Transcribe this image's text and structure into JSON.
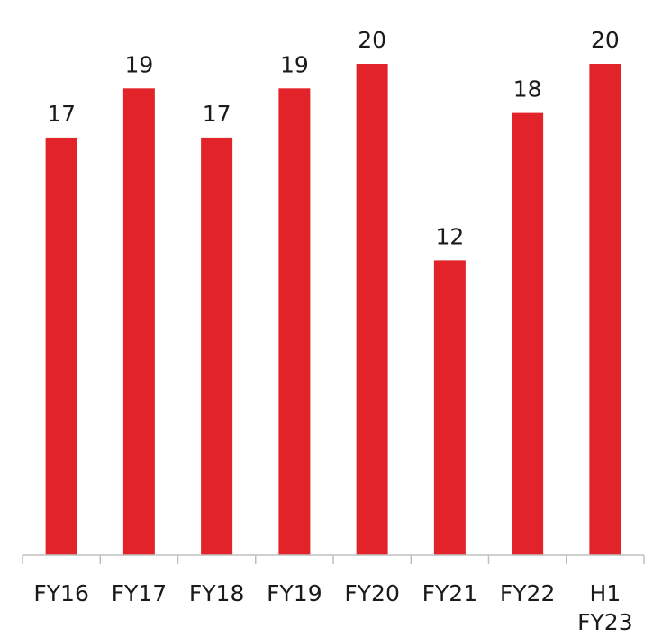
{
  "chart_data": {
    "type": "bar",
    "categories": [
      [
        "FY16"
      ],
      [
        "FY17"
      ],
      [
        "FY18"
      ],
      [
        "FY19"
      ],
      [
        "FY20"
      ],
      [
        "FY21"
      ],
      [
        "FY22"
      ],
      [
        "H1",
        "FY23"
      ]
    ],
    "values": [
      17,
      19,
      17,
      19,
      20,
      12,
      18,
      20
    ],
    "data_labels": [
      "17",
      "19",
      "17",
      "19",
      "20",
      "12",
      "18",
      "20"
    ],
    "title": "",
    "xlabel": "",
    "ylabel": "",
    "ylim": [
      0,
      22
    ],
    "grid": false,
    "legend": "none",
    "bar_color": "#e3232a"
  }
}
